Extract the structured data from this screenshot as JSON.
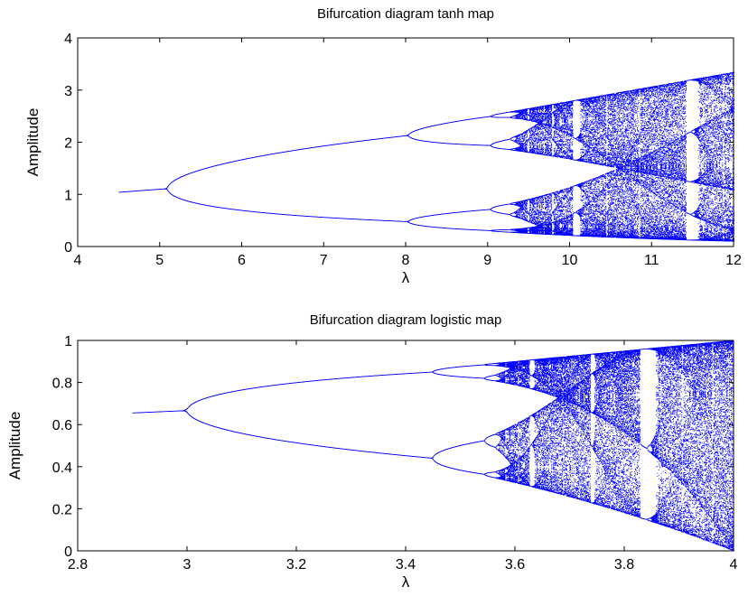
{
  "colors": {
    "series": "#0000ff",
    "axes": "#000000",
    "background": "#ffffff"
  },
  "chart_data": [
    {
      "type": "scatter",
      "kind": "bifurcation-diagram",
      "title": "Bifurcation diagram tanh map",
      "xlabel": "λ",
      "ylabel": "Amplitude",
      "xlim": [
        4,
        12
      ],
      "ylim": [
        0,
        4
      ],
      "x_ticks": [
        4,
        5,
        6,
        7,
        8,
        9,
        10,
        11,
        12
      ],
      "y_ticks": [
        0,
        1,
        2,
        3,
        4
      ],
      "grid": false,
      "legend": "none",
      "series": [
        {
          "x_start": 4.5,
          "fixed_point": [
            [
              4.5,
              1.05
            ],
            [
              5.05,
              1.12
            ]
          ],
          "period_doubling_lambdas": [
            5.05,
            8.0,
            9.0,
            9.35
          ],
          "period2_at_8": [
            0.5,
            2.1
          ],
          "chaos_onset": 9.4,
          "chaotic_band_at_12": [
            0.1,
            3.35
          ],
          "periodic_windows": [
            10.05,
            10.65,
            11.45
          ]
        }
      ]
    },
    {
      "type": "scatter",
      "kind": "bifurcation-diagram",
      "title": "Bifurcation diagram logistic map",
      "xlabel": "λ",
      "ylabel": "Amplitude",
      "xlim": [
        2.8,
        4
      ],
      "ylim": [
        0,
        1
      ],
      "x_ticks": [
        2.8,
        3,
        3.2,
        3.4,
        3.6,
        3.8,
        4
      ],
      "y_ticks": [
        0,
        0.2,
        0.4,
        0.6,
        0.8,
        1
      ],
      "grid": false,
      "legend": "none",
      "series": [
        {
          "x_start": 2.9,
          "fixed_point": [
            [
              2.9,
              0.655
            ],
            [
              3.0,
              0.667
            ]
          ],
          "period_doubling_lambdas": [
            3.0,
            3.449,
            3.544,
            3.564
          ],
          "chaos_onset": 3.57,
          "chaotic_band_at_4": [
            0.0,
            1.0
          ],
          "periodic_windows": [
            3.63,
            3.74,
            3.83
          ]
        }
      ]
    }
  ]
}
